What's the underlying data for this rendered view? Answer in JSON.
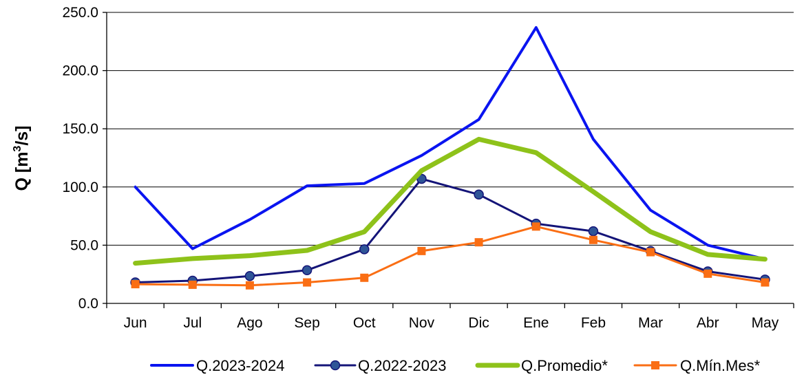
{
  "chart_data": {
    "type": "line",
    "categories": [
      "Jun",
      "Jul",
      "Ago",
      "Sep",
      "Oct",
      "Nov",
      "Dic",
      "Ene",
      "Feb",
      "Mar",
      "Abr",
      "May"
    ],
    "ylabel_main": "Q [m",
    "ylabel_sup": "3",
    "ylabel_tail": "/s]",
    "ylim": [
      0,
      250
    ],
    "yticks": [
      "0.0",
      "50.0",
      "100.0",
      "150.0",
      "200.0",
      "250.0"
    ],
    "grid": true,
    "legend_position": "bottom",
    "series": [
      {
        "name": "Q.2023-2024",
        "color": "#0a14f0",
        "marker": "none",
        "width": 4,
        "values": [
          100,
          47,
          72,
          101,
          103,
          127,
          158,
          237,
          141,
          80,
          50,
          38
        ]
      },
      {
        "name": "Q.2022-2023",
        "color": "#141478",
        "marker": "circle",
        "width": 3,
        "values": [
          18,
          19.5,
          23.5,
          28.5,
          46.5,
          107,
          93.5,
          68.5,
          62,
          45,
          27.5,
          20.5
        ]
      },
      {
        "name": "Q.Promedio*",
        "color": "#8ec21a",
        "marker": "none",
        "width": 7,
        "values": [
          34.5,
          38.5,
          41,
          45.5,
          61.5,
          114,
          141,
          129.5,
          96,
          61.5,
          42,
          38
        ]
      },
      {
        "name": "Q.Mín.Mes*",
        "color": "#fa6e14",
        "marker": "square",
        "width": 3,
        "values": [
          16.5,
          16,
          15.5,
          18,
          22,
          45,
          52.5,
          66,
          54.5,
          44,
          25.5,
          18
        ]
      }
    ]
  }
}
